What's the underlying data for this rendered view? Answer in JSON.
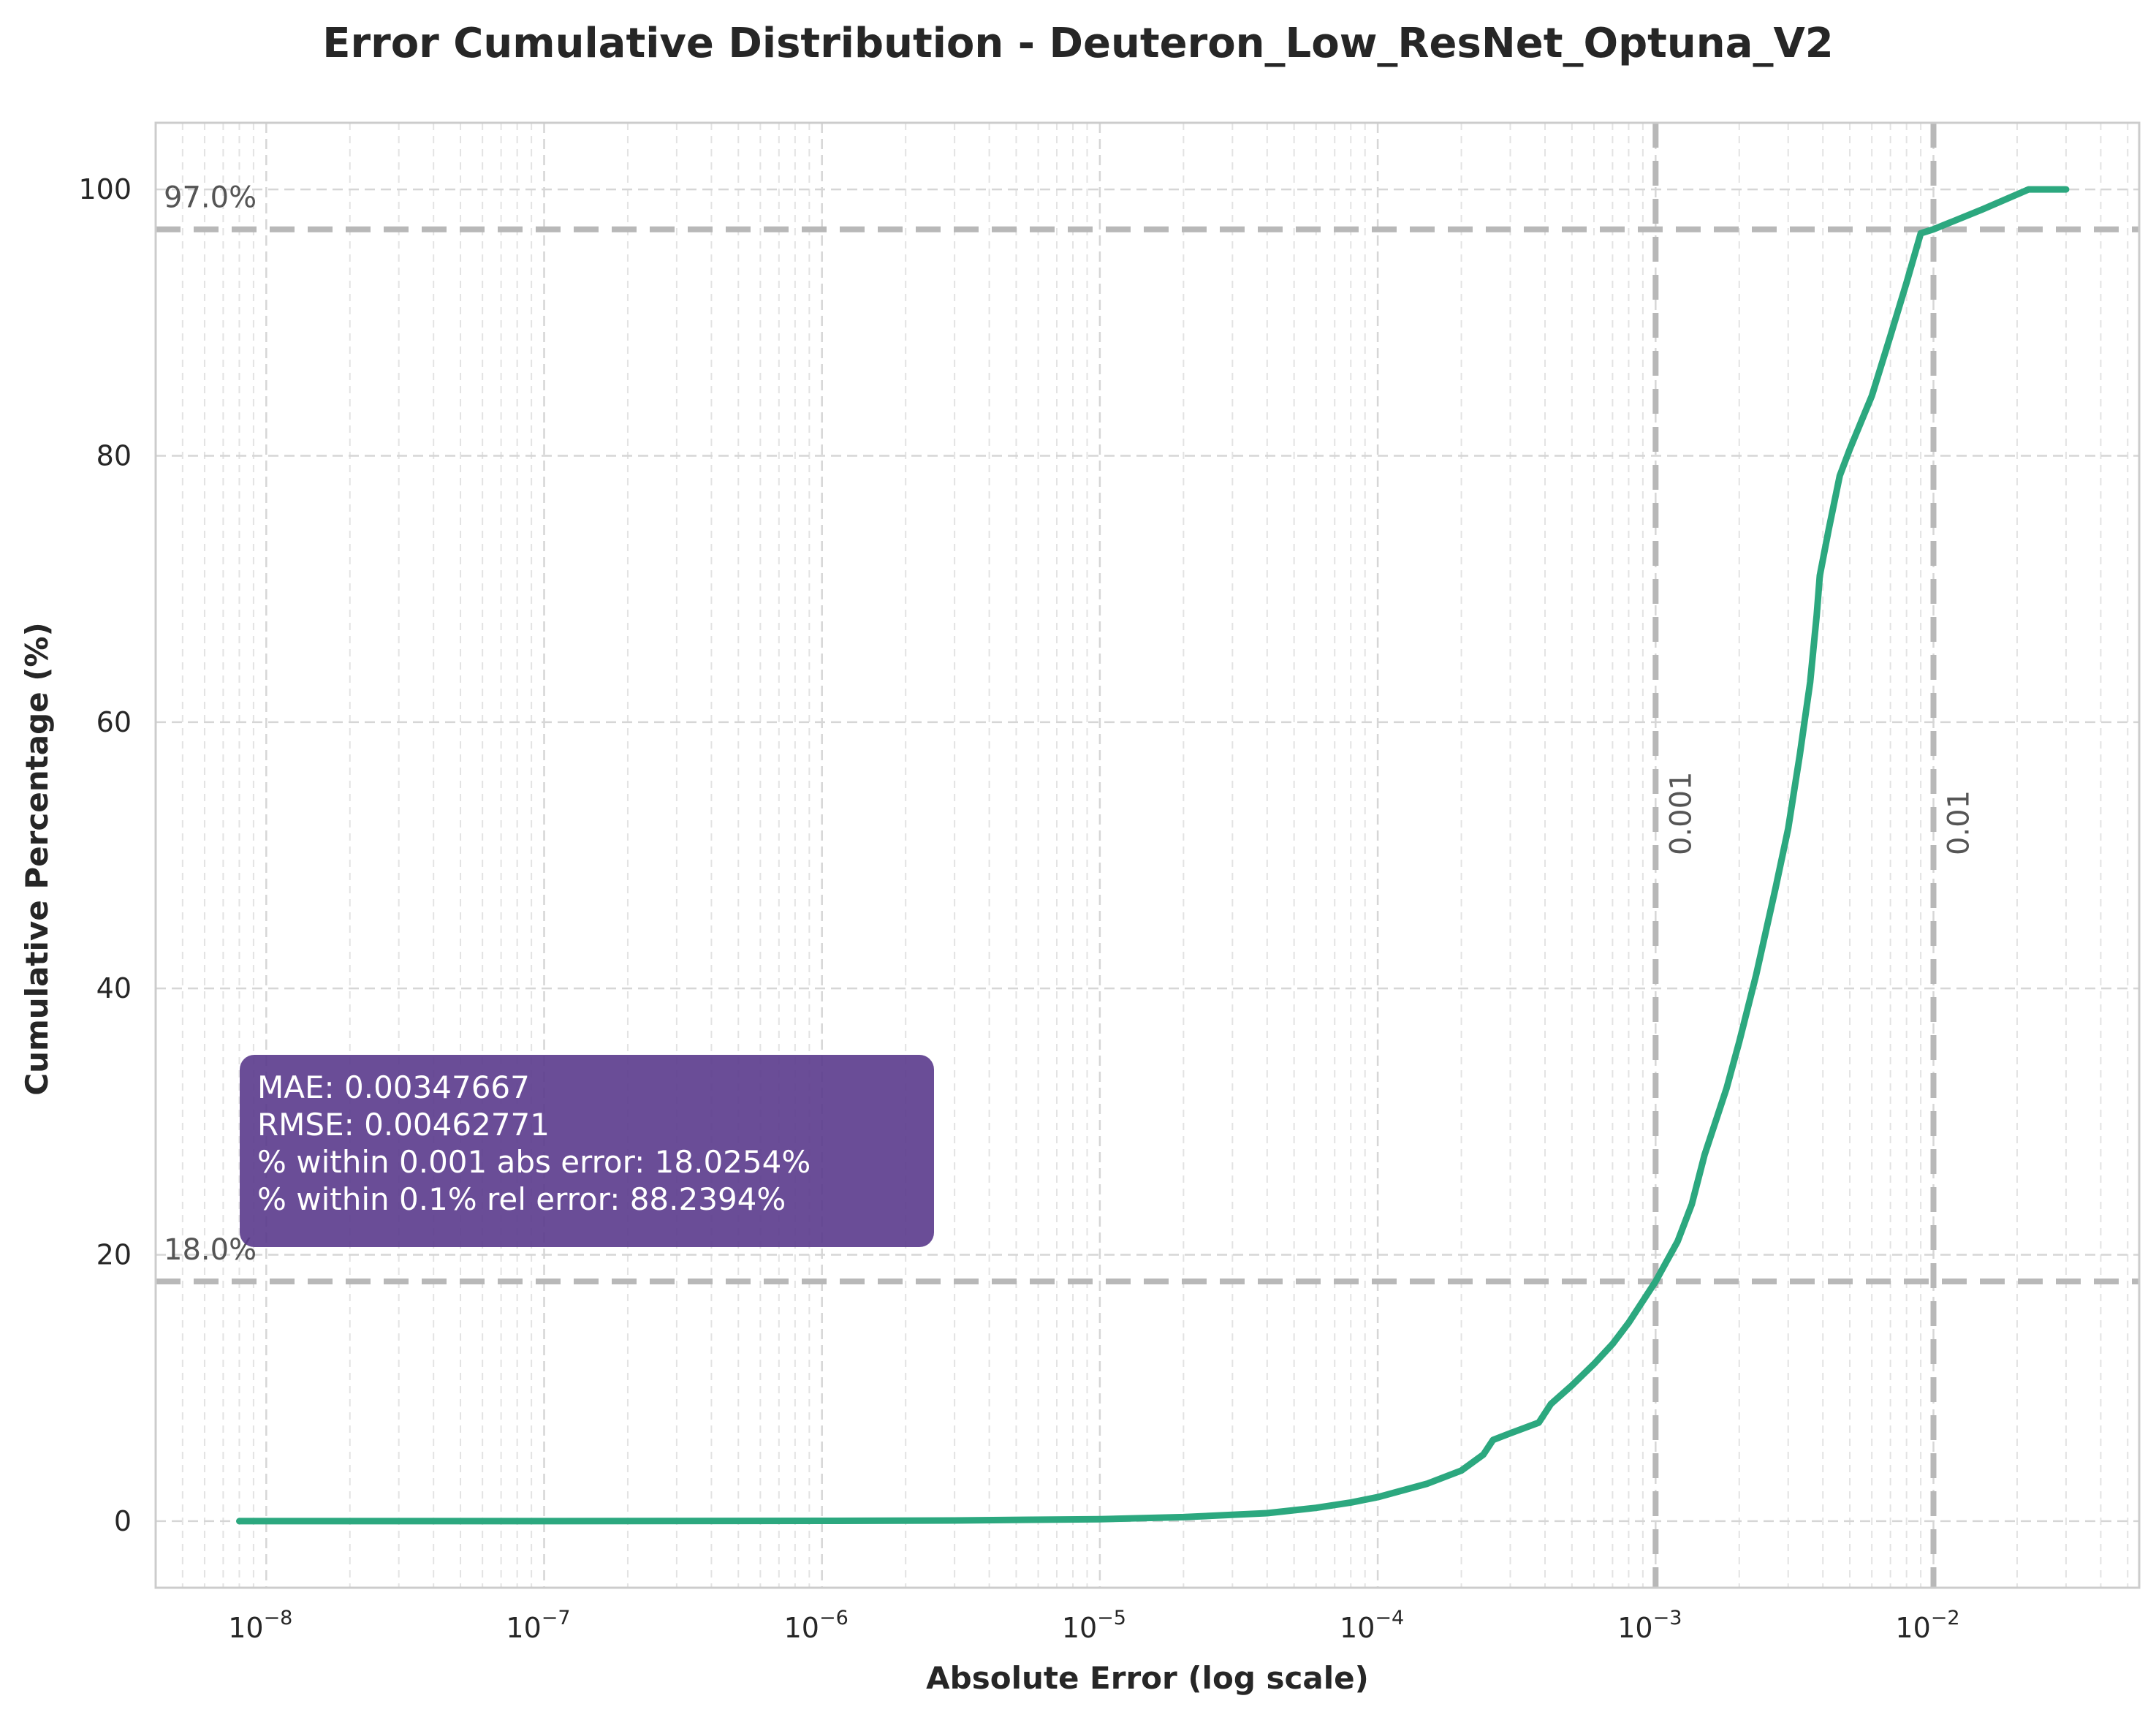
{
  "chart_data": {
    "type": "line",
    "title": "Error Cumulative Distribution - Deuteron_Low_ResNet_Optuna_V2",
    "xlabel": "Absolute Error (log scale)",
    "ylabel": "Cumulative Percentage (%)",
    "xscale": "log",
    "xlim": [
      4e-09,
      0.055
    ],
    "ylim": [
      -5,
      105
    ],
    "x_ticks": [
      {
        "value": 1e-08,
        "base": "10",
        "exp": "−8"
      },
      {
        "value": 1e-07,
        "base": "10",
        "exp": "−7"
      },
      {
        "value": 1e-06,
        "base": "10",
        "exp": "−6"
      },
      {
        "value": 1e-05,
        "base": "10",
        "exp": "−5"
      },
      {
        "value": 0.0001,
        "base": "10",
        "exp": "−4"
      },
      {
        "value": 0.001,
        "base": "10",
        "exp": "−3"
      },
      {
        "value": 0.01,
        "base": "10",
        "exp": "−2"
      }
    ],
    "y_ticks": [
      "0",
      "20",
      "40",
      "60",
      "80",
      "100"
    ],
    "grid": true,
    "series": [
      {
        "color": "#2ca87f",
        "points": [
          [
            8e-09,
            0
          ],
          [
            1e-07,
            0
          ],
          [
            1e-06,
            0.02
          ],
          [
            3e-06,
            0.05
          ],
          [
            1e-05,
            0.15
          ],
          [
            2e-05,
            0.3
          ],
          [
            4e-05,
            0.6
          ],
          [
            6e-05,
            1.0
          ],
          [
            8e-05,
            1.4
          ],
          [
            0.0001,
            1.8
          ],
          [
            0.00015,
            2.8
          ],
          [
            0.0002,
            3.8
          ],
          [
            0.00024,
            5.0
          ],
          [
            0.00026,
            6.1
          ],
          [
            0.0003,
            6.6
          ],
          [
            0.00038,
            7.4
          ],
          [
            0.00042,
            8.8
          ],
          [
            0.0005,
            10.2
          ],
          [
            0.0006,
            11.8
          ],
          [
            0.0007,
            13.3
          ],
          [
            0.0008,
            14.9
          ],
          [
            0.001,
            18.0
          ],
          [
            0.0012,
            21.0
          ],
          [
            0.00135,
            23.8
          ],
          [
            0.0015,
            27.5
          ],
          [
            0.0018,
            32.5
          ],
          [
            0.002,
            36.0
          ],
          [
            0.0023,
            41.0
          ],
          [
            0.0027,
            47.5
          ],
          [
            0.003,
            52.0
          ],
          [
            0.0033,
            57.5
          ],
          [
            0.0036,
            63.0
          ],
          [
            0.0038,
            68.0
          ],
          [
            0.0039,
            71.0
          ],
          [
            0.0042,
            74.5
          ],
          [
            0.0046,
            78.5
          ],
          [
            0.005,
            80.5
          ],
          [
            0.006,
            84.5
          ],
          [
            0.007,
            89.0
          ],
          [
            0.008,
            93.0
          ],
          [
            0.009,
            96.7
          ],
          [
            0.01,
            97.0
          ],
          [
            0.015,
            98.5
          ],
          [
            0.022,
            100.0
          ],
          [
            0.03,
            100.0
          ]
        ]
      }
    ],
    "h_ref_lines": [
      {
        "y": 97.0,
        "label": "97.0%"
      },
      {
        "y": 18.0,
        "label": "18.0%"
      }
    ],
    "v_ref_lines": [
      {
        "x": 0.001,
        "label": "0.001"
      },
      {
        "x": 0.01,
        "label": "0.01"
      }
    ],
    "info_box": {
      "lines": [
        "MAE: 0.00347667",
        "RMSE: 0.00462771",
        "% within 0.001 abs error: 18.0254%",
        "% within 0.1% rel error: 88.2394%"
      ],
      "background": "#5a3a8c"
    }
  }
}
